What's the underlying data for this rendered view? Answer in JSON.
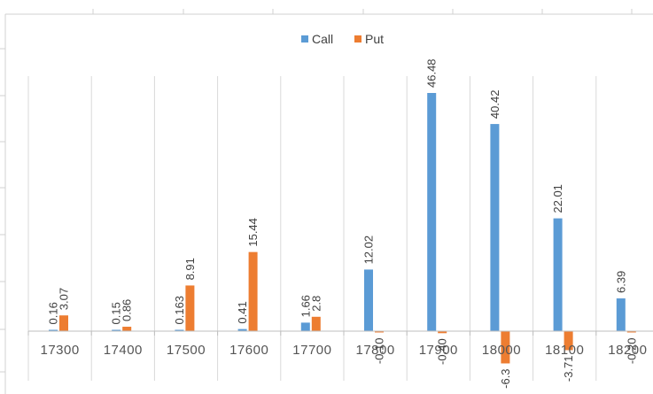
{
  "chart_data": {
    "type": "bar",
    "title": "",
    "xlabel": "",
    "ylabel": "",
    "categories": [
      "17300",
      "17400",
      "17500",
      "17600",
      "17700",
      "17800",
      "17900",
      "18000",
      "18100",
      "18200"
    ],
    "series": [
      {
        "name": "Call",
        "color": "#5B9BD5",
        "values": [
          0.16,
          0.15,
          0.163,
          0.41,
          1.66,
          12.02,
          46.48,
          40.42,
          22.01,
          6.39
        ]
      },
      {
        "name": "Put",
        "color": "#ED7D31",
        "values": [
          3.07,
          0.86,
          8.91,
          15.44,
          2.8,
          -0.1,
          -0.4,
          -6.3,
          -3.71,
          -0.2
        ]
      }
    ],
    "data_labels": {
      "Call": [
        "0.16",
        "0.15",
        "0.163",
        "0.41",
        "1.66",
        "12.02",
        "46.48",
        "40.42",
        "22.01",
        "6.39"
      ],
      "Put": [
        "3.07",
        "0.86",
        "8.91",
        "15.44",
        "2.8",
        "-0.10",
        "-0.40",
        "-6.3",
        "-3.71",
        "-0.20"
      ]
    },
    "ylim": [
      -10,
      50
    ],
    "grid": "vertical",
    "legend_position": "top-center"
  }
}
